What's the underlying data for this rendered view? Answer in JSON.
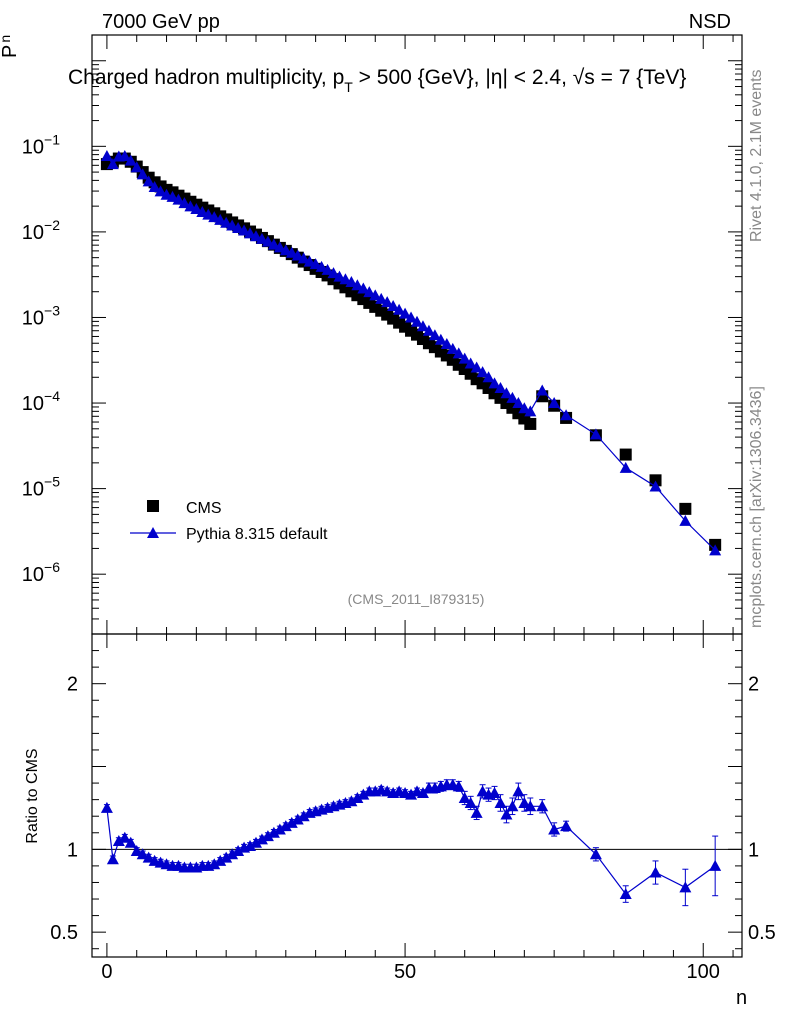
{
  "header": {
    "energy_label": "7000 GeV pp",
    "process_label": "NSD",
    "title": "Charged hadron multiplicity, p",
    "title_sub": "T",
    "title_rest": " > 500 {GeV}, |η| < 2.4, √s = 7 {TeV}",
    "analysis_tag": "(CMS_2011_I879315)"
  },
  "side_labels": {
    "rivet": "Rivet 4.1.0,  2.1M events",
    "mcplots": "mcplots.cern.ch [arXiv:1306.3436]"
  },
  "colors": {
    "data": "#000000",
    "mc": "#0000cc"
  },
  "chart_data": [
    {
      "type": "scatter",
      "panel": "main",
      "ylabel": "P",
      "ylabel_sub": "n",
      "xlabel": "",
      "yscale": "log",
      "ylim": [
        2e-07,
        2
      ],
      "xlim": [
        -2.5,
        106.5
      ],
      "ytick_labels": [
        {
          "base": "10",
          "exp": "−1",
          "value": 0.1
        },
        {
          "base": "10",
          "exp": "−2",
          "value": 0.01
        },
        {
          "base": "10",
          "exp": "−3",
          "value": 0.001
        },
        {
          "base": "10",
          "exp": "−4",
          "value": 0.0001
        },
        {
          "base": "10",
          "exp": "−5",
          "value": 1e-05
        },
        {
          "base": "10",
          "exp": "−6",
          "value": 1e-06
        }
      ],
      "legend": [
        {
          "label": "CMS",
          "marker": "square"
        },
        {
          "label": "Pythia 8.315 default",
          "marker": "triangle"
        }
      ],
      "legend_placement": "bottom-left",
      "series": [
        {
          "name": "CMS",
          "x": [
            0,
            1,
            2,
            3,
            4,
            5,
            6,
            7,
            8,
            9,
            10,
            11,
            12,
            13,
            14,
            15,
            16,
            17,
            18,
            19,
            20,
            21,
            22,
            23,
            24,
            25,
            26,
            27,
            28,
            29,
            30,
            31,
            32,
            33,
            34,
            35,
            36,
            37,
            38,
            39,
            40,
            41,
            42,
            43,
            44,
            45,
            46,
            47,
            48,
            49,
            50,
            51,
            52,
            53,
            54,
            55,
            56,
            57,
            58,
            59,
            60,
            61,
            62,
            63,
            64,
            65,
            66,
            67,
            68,
            69,
            70,
            71,
            73,
            75,
            77,
            82,
            87,
            92,
            97,
            102
          ],
          "values": [
            0.062,
            0.066,
            0.072,
            0.072,
            0.066,
            0.058,
            0.05,
            0.043,
            0.038,
            0.034,
            0.031,
            0.029,
            0.0265,
            0.0245,
            0.0225,
            0.0208,
            0.0192,
            0.0178,
            0.0165,
            0.0152,
            0.014,
            0.0129,
            0.0119,
            0.011,
            0.0101,
            0.0093,
            0.0085,
            0.0078,
            0.0071,
            0.0065,
            0.006,
            0.0055,
            0.005,
            0.0045,
            0.0041,
            0.0037,
            0.0034,
            0.0031,
            0.0028,
            0.0025,
            0.00225,
            0.00202,
            0.00182,
            0.00164,
            0.00148,
            0.00133,
            0.0012,
            0.00108,
            0.00097,
            0.00087,
            0.00078,
            0.0007,
            0.00063,
            0.00056,
            0.0005,
            0.00045,
            0.0004,
            0.00036,
            0.00032,
            0.00028,
            0.00025,
            0.00022,
            0.00019,
            0.00017,
            0.00015,
            0.00013,
            0.000115,
            0.0001,
            8.8e-05,
            7.6e-05,
            6.6e-05,
            5.7e-05,
            0.00012,
            9.3e-05,
            6.7e-05,
            4.2e-05,
            2.5e-05,
            1.25e-05,
            5.8e-06,
            2.2e-06
          ]
        },
        {
          "name": "Pythia 8.315 default",
          "x": [
            0,
            1,
            2,
            3,
            4,
            5,
            6,
            7,
            8,
            9,
            10,
            11,
            12,
            13,
            14,
            15,
            16,
            17,
            18,
            19,
            20,
            21,
            22,
            23,
            24,
            25,
            26,
            27,
            28,
            29,
            30,
            31,
            32,
            33,
            34,
            35,
            36,
            37,
            38,
            39,
            40,
            41,
            42,
            43,
            44,
            45,
            46,
            47,
            48,
            49,
            50,
            51,
            52,
            53,
            54,
            55,
            56,
            57,
            58,
            59,
            60,
            61,
            62,
            63,
            64,
            65,
            66,
            67,
            68,
            69,
            70,
            71,
            73,
            75,
            77,
            82,
            87,
            92,
            97,
            102
          ],
          "values": [
            0.077,
            0.062,
            0.076,
            0.077,
            0.068,
            0.057,
            0.047,
            0.039,
            0.0335,
            0.0298,
            0.0272,
            0.0257,
            0.0238,
            0.0217,
            0.0199,
            0.0185,
            0.0171,
            0.0159,
            0.0149,
            0.0138,
            0.0128,
            0.0119,
            0.0111,
            0.0104,
            0.0096,
            0.0089,
            0.0083,
            0.0077,
            0.0071,
            0.0066,
            0.0061,
            0.0057,
            0.0053,
            0.0049,
            0.0045,
            0.0042,
            0.0039,
            0.0036,
            0.0033,
            0.003,
            0.0028,
            0.0026,
            0.00238,
            0.00218,
            0.00198,
            0.00181,
            0.00165,
            0.00151,
            0.00136,
            0.00123,
            0.00111,
            0.001,
            0.00089,
            0.00079,
            0.0007,
            0.00062,
            0.00055,
            0.00049,
            0.00043,
            0.00038,
            0.00033,
            0.00029,
            0.00026,
            0.00023,
            0.0002,
            0.00017,
            0.00015,
            0.00013,
            0.000115,
            0.0001,
            8.7e-05,
            8e-05,
            0.00014,
            0.0001,
            7.2e-05,
            4.3e-05,
            1.75e-05,
            1.06e-05,
            4.2e-06,
            1.9e-06
          ]
        }
      ]
    },
    {
      "type": "scatter",
      "panel": "ratio",
      "ylabel": "Ratio to CMS",
      "xlabel": "n",
      "ylim": [
        0.35,
        2.3
      ],
      "xlim": [
        -2.5,
        106.5
      ],
      "yticks": [
        {
          "label": "2",
          "value": 2
        },
        {
          "label": "1",
          "value": 1
        },
        {
          "label": "0.5",
          "value": 0.5
        }
      ],
      "xticks": [
        {
          "label": "0",
          "value": 0
        },
        {
          "label": "50",
          "value": 50
        },
        {
          "label": "100",
          "value": 100
        }
      ],
      "reference_line": 1,
      "series": [
        {
          "name": "Pythia 8.315 default",
          "x": [
            0,
            1,
            2,
            3,
            4,
            5,
            6,
            7,
            8,
            9,
            10,
            11,
            12,
            13,
            14,
            15,
            16,
            17,
            18,
            19,
            20,
            21,
            22,
            23,
            24,
            25,
            26,
            27,
            28,
            29,
            30,
            31,
            32,
            33,
            34,
            35,
            36,
            37,
            38,
            39,
            40,
            41,
            42,
            43,
            44,
            45,
            46,
            47,
            48,
            49,
            50,
            51,
            52,
            53,
            54,
            55,
            56,
            57,
            58,
            59,
            60,
            61,
            62,
            63,
            64,
            65,
            66,
            67,
            68,
            69,
            70,
            71,
            73,
            75,
            77,
            82,
            87,
            92,
            97,
            102
          ],
          "values": [
            1.25,
            0.94,
            1.05,
            1.07,
            1.04,
            0.99,
            0.97,
            0.95,
            0.93,
            0.92,
            0.91,
            0.9,
            0.9,
            0.89,
            0.89,
            0.89,
            0.9,
            0.9,
            0.91,
            0.93,
            0.95,
            0.97,
            0.99,
            1.01,
            1.02,
            1.04,
            1.06,
            1.08,
            1.1,
            1.12,
            1.14,
            1.16,
            1.18,
            1.2,
            1.22,
            1.23,
            1.24,
            1.25,
            1.26,
            1.27,
            1.28,
            1.29,
            1.31,
            1.33,
            1.35,
            1.35,
            1.36,
            1.35,
            1.34,
            1.35,
            1.34,
            1.33,
            1.35,
            1.34,
            1.37,
            1.37,
            1.38,
            1.39,
            1.39,
            1.38,
            1.31,
            1.28,
            1.22,
            1.35,
            1.33,
            1.34,
            1.28,
            1.21,
            1.26,
            1.35,
            1.28,
            1.26,
            1.26,
            1.12,
            1.14,
            0.97,
            0.73,
            0.86,
            0.77,
            0.9
          ],
          "errors": [
            0.02,
            0.02,
            0.02,
            0.02,
            0.02,
            0.02,
            0.02,
            0.02,
            0.02,
            0.02,
            0.02,
            0.02,
            0.02,
            0.02,
            0.02,
            0.02,
            0.02,
            0.02,
            0.02,
            0.02,
            0.02,
            0.02,
            0.02,
            0.02,
            0.02,
            0.02,
            0.02,
            0.02,
            0.02,
            0.02,
            0.02,
            0.02,
            0.02,
            0.02,
            0.02,
            0.02,
            0.02,
            0.02,
            0.02,
            0.02,
            0.02,
            0.02,
            0.02,
            0.02,
            0.02,
            0.02,
            0.02,
            0.02,
            0.02,
            0.02,
            0.02,
            0.02,
            0.02,
            0.02,
            0.03,
            0.03,
            0.03,
            0.03,
            0.03,
            0.03,
            0.04,
            0.04,
            0.04,
            0.04,
            0.04,
            0.04,
            0.05,
            0.05,
            0.05,
            0.05,
            0.05,
            0.05,
            0.04,
            0.04,
            0.03,
            0.04,
            0.05,
            0.07,
            0.11,
            0.18
          ]
        }
      ]
    }
  ]
}
